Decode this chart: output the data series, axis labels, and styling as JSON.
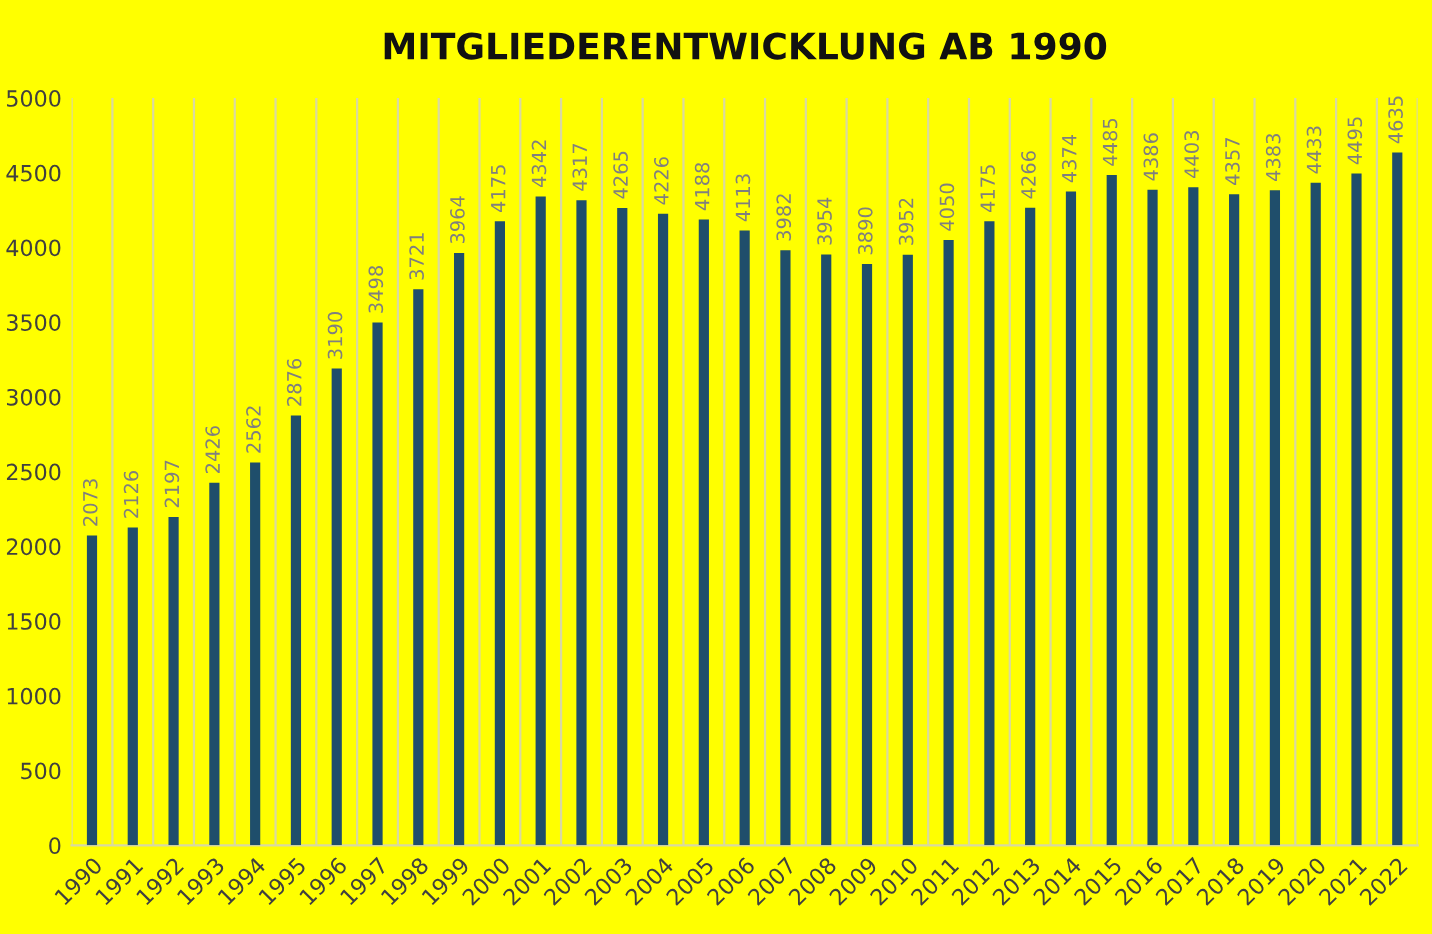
{
  "chart_data": {
    "type": "bar",
    "title": "MITGLIEDERENTWICKLUNG AB 1990",
    "categories": [
      "1990",
      "1991",
      "1992",
      "1993",
      "1994",
      "1995",
      "1996",
      "1997",
      "1998",
      "1999",
      "2000",
      "2001",
      "2002",
      "2003",
      "2004",
      "2005",
      "2006",
      "2007",
      "2008",
      "2009",
      "2010",
      "2011",
      "2012",
      "2013",
      "2014",
      "2015",
      "2016",
      "2017",
      "2018",
      "2019",
      "2020",
      "2021",
      "2022"
    ],
    "values": [
      2073,
      2126,
      2197,
      2426,
      2562,
      2876,
      3190,
      3498,
      3721,
      3964,
      4175,
      4342,
      4317,
      4265,
      4226,
      4188,
      4113,
      3982,
      3954,
      3890,
      3952,
      4050,
      4175,
      4266,
      4374,
      4485,
      4386,
      4403,
      4357,
      4383,
      4433,
      4495,
      4635
    ],
    "color": "#1f4e6b",
    "ylim": [
      0,
      5000
    ],
    "yticks": [
      0,
      500,
      1000,
      1500,
      2000,
      2500,
      3000,
      3500,
      4000,
      4500,
      5000
    ],
    "grid": "x",
    "data_labels": true
  }
}
